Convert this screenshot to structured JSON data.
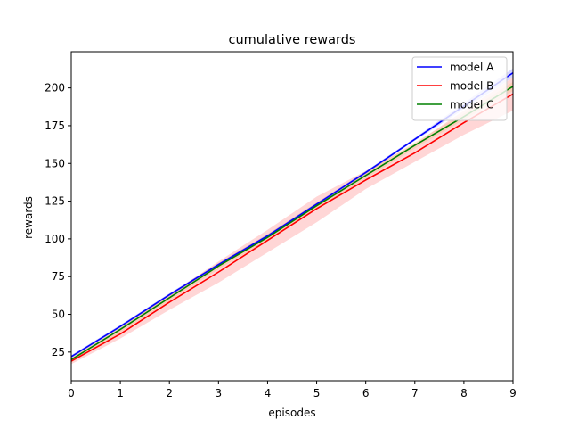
{
  "chart_data": {
    "type": "line",
    "title": "cumulative rewards",
    "xlabel": "episodes",
    "ylabel": "rewards",
    "xlim": [
      0,
      9
    ],
    "ylim": [
      6,
      224
    ],
    "xticks": [
      0,
      1,
      2,
      3,
      4,
      5,
      6,
      7,
      8,
      9
    ],
    "yticks": [
      25,
      50,
      75,
      100,
      125,
      150,
      175,
      200
    ],
    "x": [
      0,
      1,
      2,
      3,
      4,
      5,
      6,
      7,
      8,
      9
    ],
    "grid": false,
    "legend_position": "top-right",
    "series": [
      {
        "name": "model A",
        "color": "#0000ff",
        "band_color": "#0000ff",
        "values": [
          22,
          42,
          63,
          83,
          102,
          123,
          144,
          166,
          188,
          210
        ],
        "lower": [
          21,
          41,
          62,
          82,
          101,
          122,
          143,
          165,
          186,
          207
        ],
        "upper": [
          23,
          43,
          64,
          84,
          103,
          124,
          145,
          167,
          190,
          213
        ]
      },
      {
        "name": "model B",
        "color": "#ff0000",
        "band_color": "#ff0000",
        "values": [
          19,
          37,
          58,
          78,
          99,
          120,
          139,
          157,
          177,
          196
        ],
        "lower": [
          17,
          34,
          53,
          71,
          91,
          111,
          133,
          151,
          169,
          185
        ],
        "upper": [
          21,
          41,
          63,
          85,
          106,
          128,
          145,
          163,
          185,
          207
        ]
      },
      {
        "name": "model C",
        "color": "#008000",
        "band_color": "#e8a020",
        "values": [
          20,
          40,
          61,
          82,
          101,
          122,
          142,
          162,
          181,
          201
        ],
        "lower": [
          18,
          38,
          59,
          80,
          99,
          120,
          140,
          160,
          179,
          198
        ],
        "upper": [
          22,
          42,
          63,
          84,
          103,
          124,
          144,
          164,
          183,
          204
        ]
      }
    ]
  }
}
